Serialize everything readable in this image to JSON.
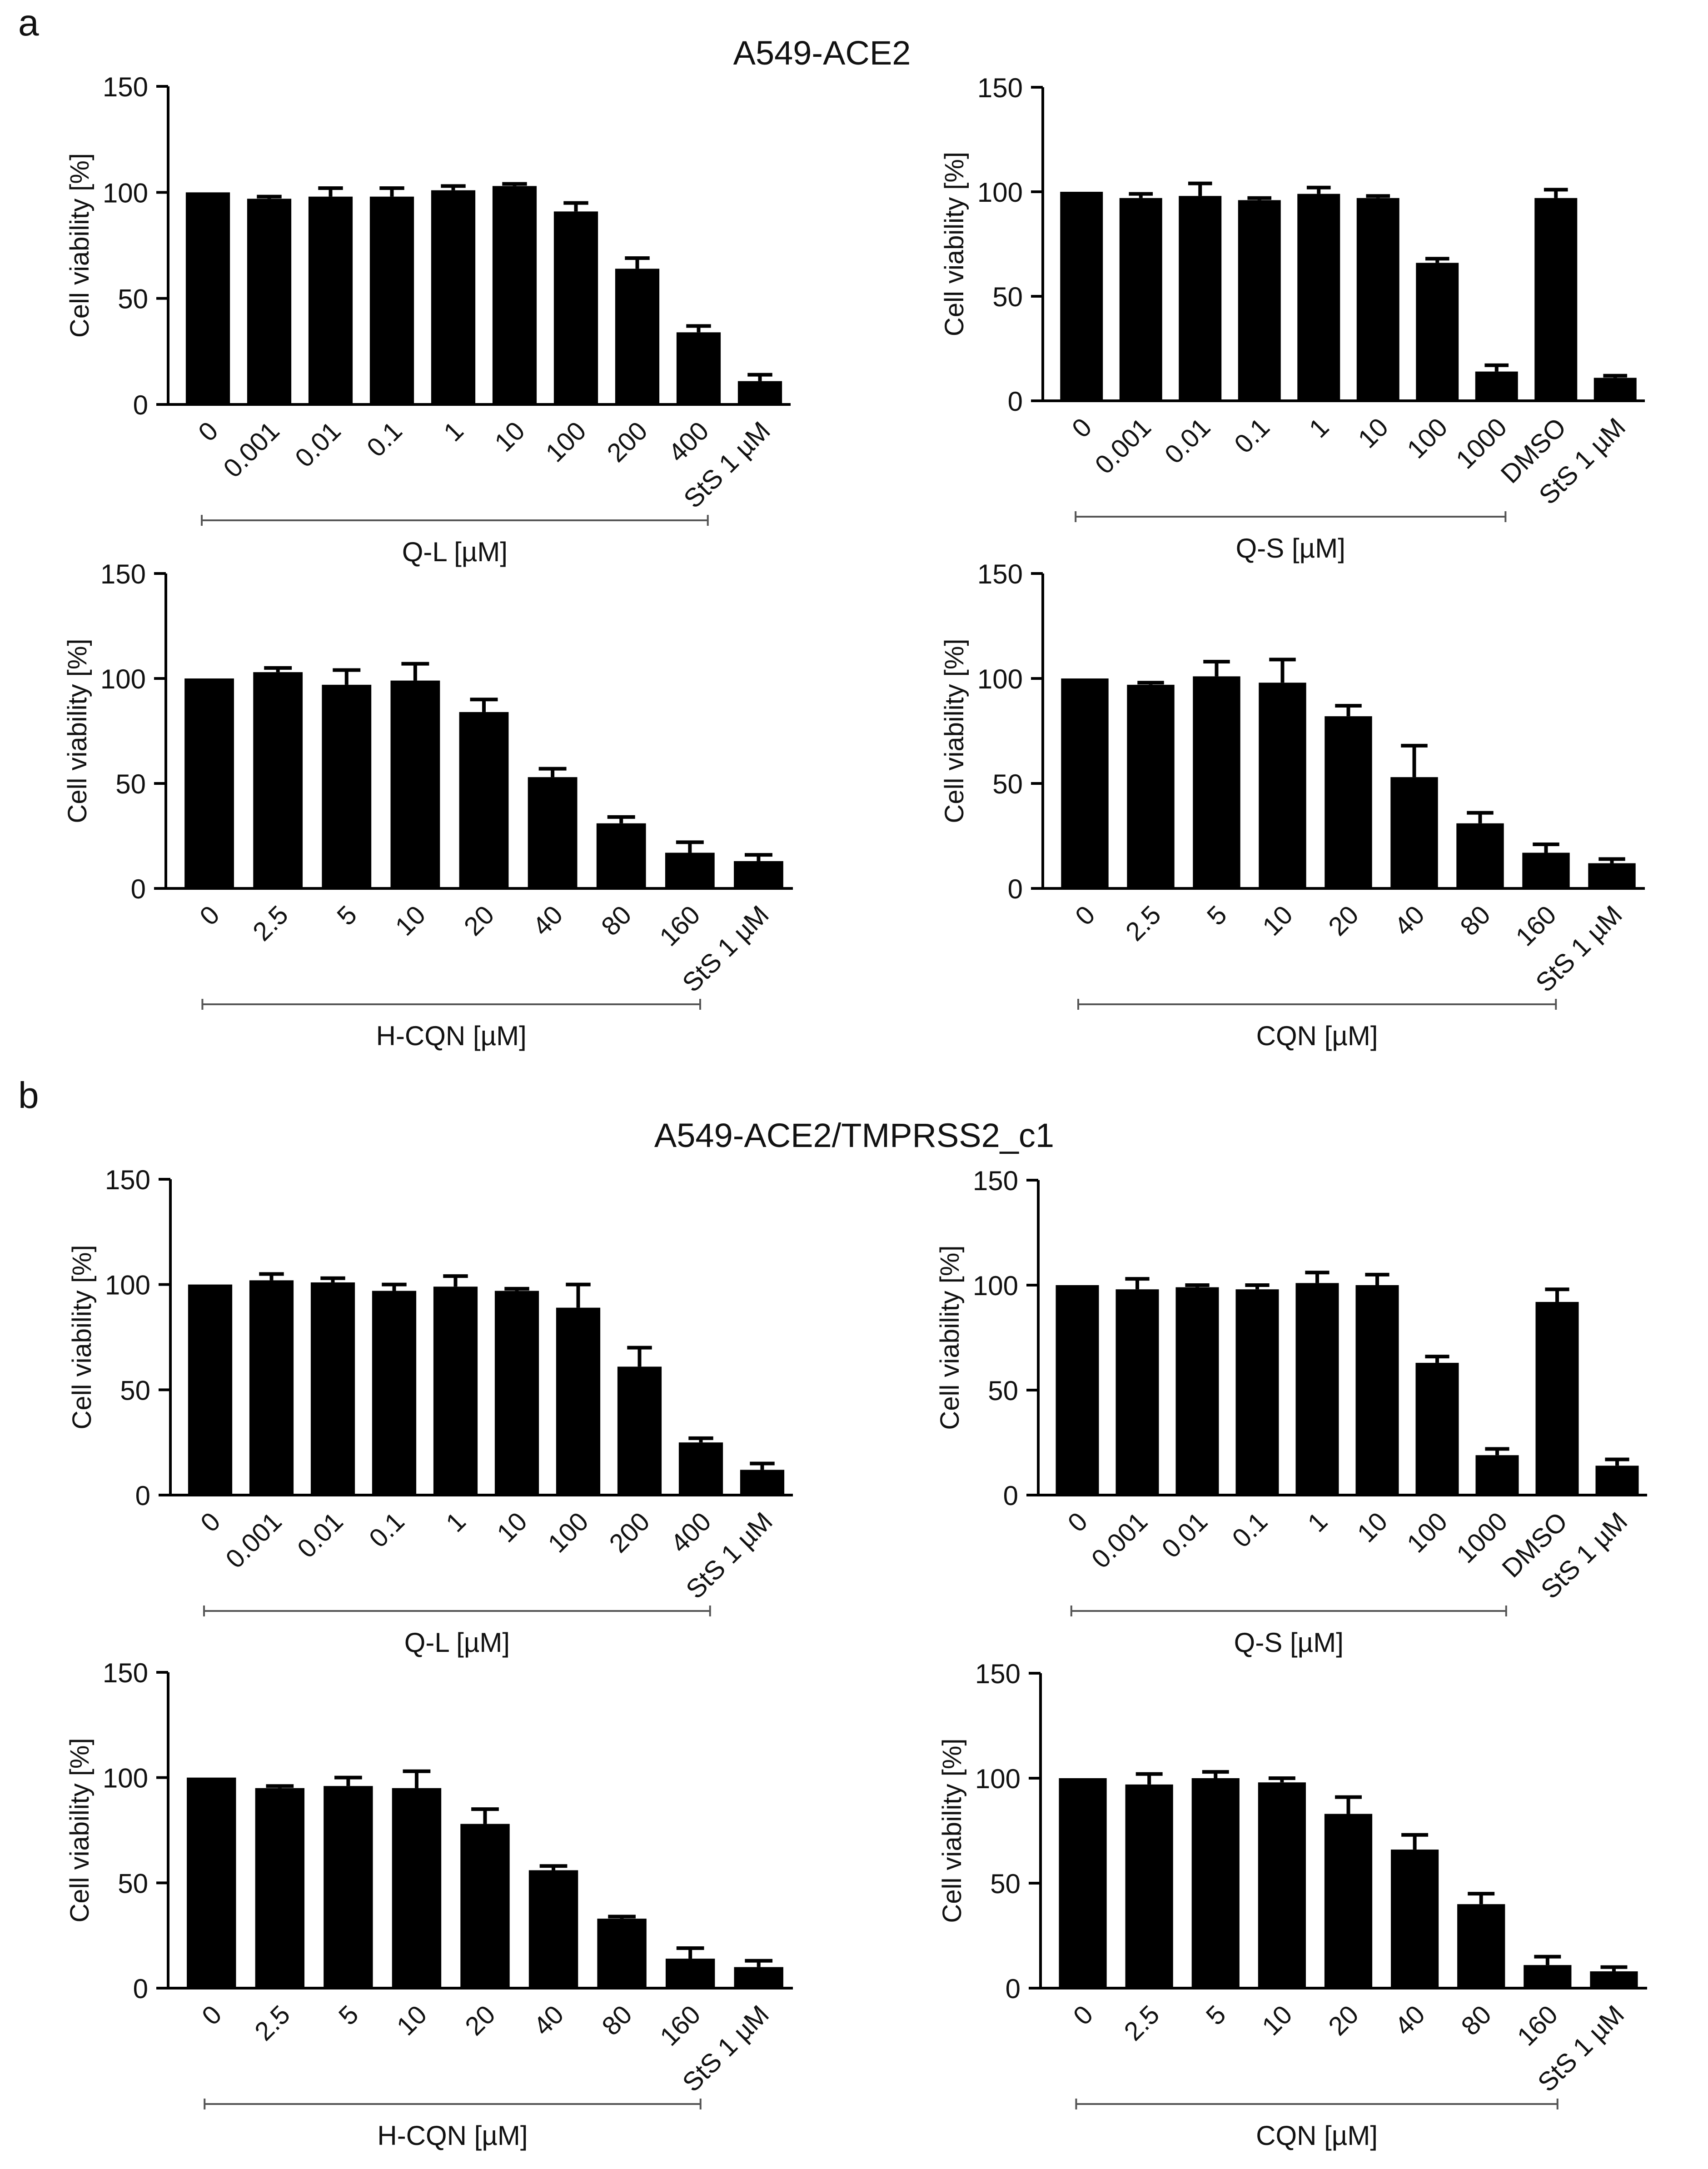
{
  "figure": {
    "panel_a": {
      "letter": "a",
      "title": "A549-ACE2"
    },
    "panel_b": {
      "letter": "b",
      "title": "A549-ACE2/TMPRSS2_c1"
    }
  },
  "chart_data": [
    {
      "panel": "a",
      "type": "bar",
      "title": "",
      "ylabel": "Cell viability [%]",
      "ylim": [
        0,
        150
      ],
      "yticks": [
        0,
        50,
        100,
        150
      ],
      "categories": [
        "0",
        "0.001",
        "0.01",
        "0.1",
        "1",
        "10",
        "100",
        "200",
        "400",
        "StS 1 µM"
      ],
      "values": [
        100,
        97,
        98,
        98,
        101,
        103,
        91,
        64,
        34,
        11
      ],
      "errors": [
        0,
        1,
        4,
        4,
        2,
        1,
        4,
        5,
        3,
        3
      ],
      "group_label": "Q-L [µM]",
      "group_count": 9
    },
    {
      "panel": "a",
      "type": "bar",
      "title": "",
      "ylabel": "Cell viability [%]",
      "ylim": [
        0,
        150
      ],
      "yticks": [
        0,
        50,
        100,
        150
      ],
      "categories": [
        "0",
        "0.001",
        "0.01",
        "0.1",
        "1",
        "10",
        "100",
        "1000",
        "DMSO",
        "StS 1 µM"
      ],
      "values": [
        100,
        97,
        98,
        96,
        99,
        97,
        66,
        14,
        97,
        11
      ],
      "errors": [
        0,
        2,
        6,
        1,
        3,
        1,
        2,
        3,
        4,
        1
      ],
      "group_label": "Q-S [µM]",
      "group_count": 8
    },
    {
      "panel": "a",
      "type": "bar",
      "title": "",
      "ylabel": "Cell viability [%]",
      "ylim": [
        0,
        150
      ],
      "yticks": [
        0,
        50,
        100,
        150
      ],
      "categories": [
        "0",
        "2.5",
        "5",
        "10",
        "20",
        "40",
        "80",
        "160",
        "StS 1 µM"
      ],
      "values": [
        100,
        103,
        97,
        99,
        84,
        53,
        31,
        17,
        13
      ],
      "errors": [
        0,
        2,
        7,
        8,
        6,
        4,
        3,
        5,
        3
      ],
      "group_label": "H-CQN [µM]",
      "group_count": 8
    },
    {
      "panel": "a",
      "type": "bar",
      "title": "",
      "ylabel": "Cell viability [%]",
      "ylim": [
        0,
        150
      ],
      "yticks": [
        0,
        50,
        100,
        150
      ],
      "categories": [
        "0",
        "2.5",
        "5",
        "10",
        "20",
        "40",
        "80",
        "160",
        "StS 1 µM"
      ],
      "values": [
        100,
        97,
        101,
        98,
        82,
        53,
        31,
        17,
        12
      ],
      "errors": [
        0,
        1,
        7,
        11,
        5,
        15,
        5,
        4,
        2
      ],
      "group_label": "CQN [µM]",
      "group_count": 8
    },
    {
      "panel": "b",
      "type": "bar",
      "title": "",
      "ylabel": "Cell viability [%]",
      "ylim": [
        0,
        150
      ],
      "yticks": [
        0,
        50,
        100,
        150
      ],
      "categories": [
        "0",
        "0.001",
        "0.01",
        "0.1",
        "1",
        "10",
        "100",
        "200",
        "400",
        "StS 1 µM"
      ],
      "values": [
        100,
        102,
        101,
        97,
        99,
        97,
        89,
        61,
        25,
        12
      ],
      "errors": [
        0,
        3,
        2,
        3,
        5,
        1,
        11,
        9,
        2,
        3
      ],
      "group_label": "Q-L [µM]",
      "group_count": 9
    },
    {
      "panel": "b",
      "type": "bar",
      "title": "",
      "ylabel": "Cell viability [%]",
      "ylim": [
        0,
        150
      ],
      "yticks": [
        0,
        50,
        100,
        150
      ],
      "categories": [
        "0",
        "0.001",
        "0.01",
        "0.1",
        "1",
        "10",
        "100",
        "1000",
        "DMSO",
        "StS 1 µM"
      ],
      "values": [
        100,
        98,
        99,
        98,
        101,
        100,
        63,
        19,
        92,
        14
      ],
      "errors": [
        0,
        5,
        1,
        2,
        5,
        5,
        3,
        3,
        6,
        3
      ],
      "group_label": "Q-S [µM]",
      "group_count": 8
    },
    {
      "panel": "b",
      "type": "bar",
      "title": "",
      "ylabel": "Cell viability [%]",
      "ylim": [
        0,
        150
      ],
      "yticks": [
        0,
        50,
        100,
        150
      ],
      "categories": [
        "0",
        "2.5",
        "5",
        "10",
        "20",
        "40",
        "80",
        "160",
        "StS 1 µM"
      ],
      "values": [
        100,
        95,
        96,
        95,
        78,
        56,
        33,
        14,
        10
      ],
      "errors": [
        0,
        1,
        4,
        8,
        7,
        2,
        1,
        5,
        3
      ],
      "group_label": "H-CQN [µM]",
      "group_count": 8
    },
    {
      "panel": "b",
      "type": "bar",
      "title": "",
      "ylabel": "Cell viability [%]",
      "ylim": [
        0,
        150
      ],
      "yticks": [
        0,
        50,
        100,
        150
      ],
      "categories": [
        "0",
        "2.5",
        "5",
        "10",
        "20",
        "40",
        "80",
        "160",
        "StS 1 µM"
      ],
      "values": [
        100,
        97,
        100,
        98,
        83,
        66,
        40,
        11,
        8
      ],
      "errors": [
        0,
        5,
        3,
        2,
        8,
        7,
        5,
        4,
        2
      ],
      "group_label": "CQN [µM]",
      "group_count": 8
    }
  ]
}
